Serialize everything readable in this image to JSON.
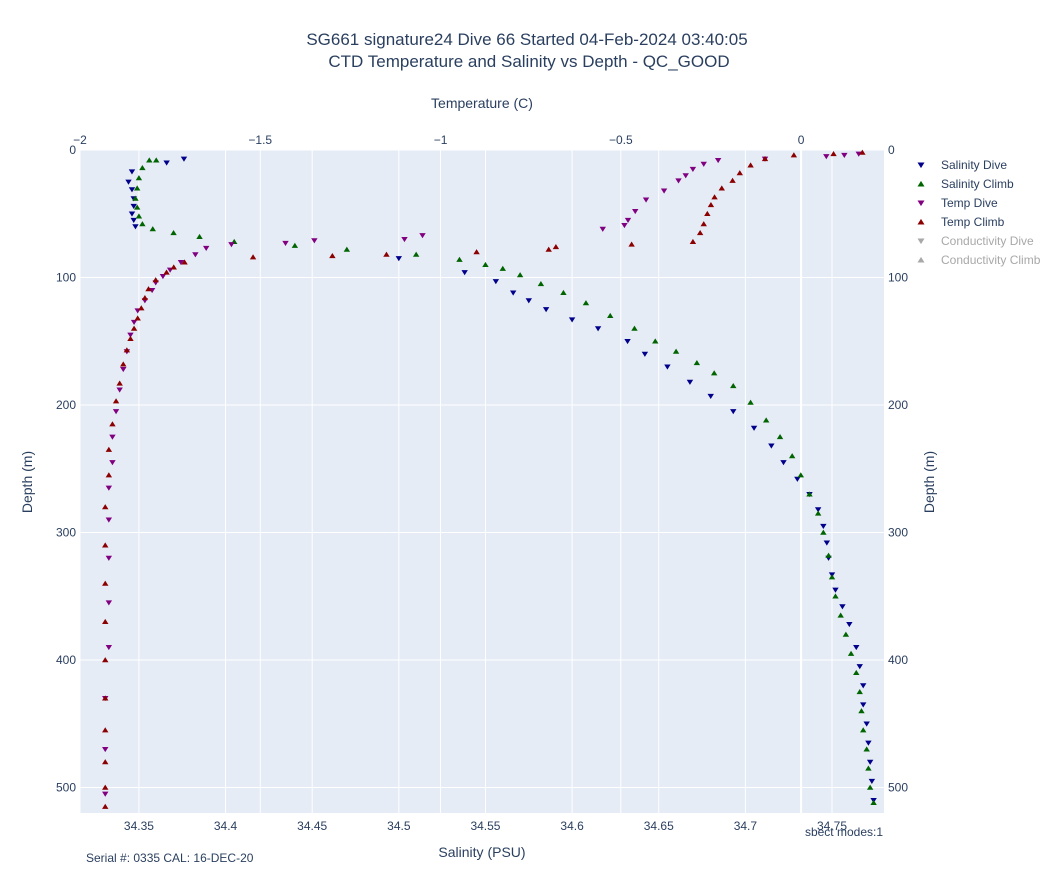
{
  "chart_data": {
    "type": "scatter",
    "title": "SG661 signature24 Dive 66 Started 04-Feb-2024 03:40:05",
    "subtitle": "CTD Temperature and Salinity vs Depth - QC_GOOD",
    "xlabel": "Salinity (PSU)",
    "x2label": "Temperature (C)",
    "ylabel": "Depth (m)",
    "y2label": "Depth (m)",
    "xlim": [
      34.316,
      34.78
    ],
    "x2lim": [
      -2.0,
      0.23
    ],
    "ylim": [
      520,
      0
    ],
    "xticks": [
      "34.35",
      "34.4",
      "34.45",
      "34.5",
      "34.55",
      "34.6",
      "34.65",
      "34.7",
      "34.75"
    ],
    "x2ticks": [
      "−2",
      "−1.5",
      "−1",
      "−0.5",
      "0"
    ],
    "yticks": [
      "0",
      "100",
      "200",
      "300",
      "400",
      "500"
    ],
    "grid": true,
    "legend_placement": "right",
    "series": [
      {
        "name": "Salinity Dive",
        "axis": "salinity",
        "marker": "triangle-down",
        "color": "#00008b",
        "points": [
          [
            34.376,
            7
          ],
          [
            34.366,
            10
          ],
          [
            34.346,
            17
          ],
          [
            34.344,
            25
          ],
          [
            34.346,
            31
          ],
          [
            34.347,
            38
          ],
          [
            34.347,
            44
          ],
          [
            34.346,
            50
          ],
          [
            34.347,
            55
          ],
          [
            34.348,
            60
          ],
          [
            34.5,
            85
          ],
          [
            34.538,
            96
          ],
          [
            34.556,
            103
          ],
          [
            34.566,
            112
          ],
          [
            34.575,
            118
          ],
          [
            34.585,
            125
          ],
          [
            34.6,
            133
          ],
          [
            34.615,
            140
          ],
          [
            34.632,
            150
          ],
          [
            34.642,
            160
          ],
          [
            34.655,
            170
          ],
          [
            34.668,
            182
          ],
          [
            34.68,
            193
          ],
          [
            34.693,
            205
          ],
          [
            34.705,
            218
          ],
          [
            34.715,
            232
          ],
          [
            34.722,
            245
          ],
          [
            34.73,
            258
          ],
          [
            34.737,
            270
          ],
          [
            34.742,
            282
          ],
          [
            34.745,
            295
          ],
          [
            34.747,
            308
          ],
          [
            34.748,
            320
          ],
          [
            34.75,
            333
          ],
          [
            34.752,
            345
          ],
          [
            34.756,
            358
          ],
          [
            34.76,
            372
          ],
          [
            34.764,
            390
          ],
          [
            34.766,
            405
          ],
          [
            34.768,
            420
          ],
          [
            34.768,
            435
          ],
          [
            34.77,
            450
          ],
          [
            34.771,
            465
          ],
          [
            34.772,
            480
          ],
          [
            34.773,
            495
          ],
          [
            34.774,
            510
          ]
        ]
      },
      {
        "name": "Salinity Climb",
        "axis": "salinity",
        "marker": "triangle-up",
        "color": "#006400",
        "points": [
          [
            34.774,
            512
          ],
          [
            34.772,
            500
          ],
          [
            34.771,
            485
          ],
          [
            34.77,
            470
          ],
          [
            34.768,
            455
          ],
          [
            34.767,
            440
          ],
          [
            34.766,
            425
          ],
          [
            34.764,
            410
          ],
          [
            34.761,
            395
          ],
          [
            34.758,
            380
          ],
          [
            34.755,
            365
          ],
          [
            34.752,
            350
          ],
          [
            34.75,
            335
          ],
          [
            34.748,
            318
          ],
          [
            34.745,
            300
          ],
          [
            34.742,
            285
          ],
          [
            34.737,
            270
          ],
          [
            34.732,
            255
          ],
          [
            34.727,
            240
          ],
          [
            34.72,
            225
          ],
          [
            34.712,
            212
          ],
          [
            34.703,
            198
          ],
          [
            34.693,
            185
          ],
          [
            34.682,
            175
          ],
          [
            34.672,
            167
          ],
          [
            34.66,
            158
          ],
          [
            34.648,
            150
          ],
          [
            34.636,
            140
          ],
          [
            34.622,
            130
          ],
          [
            34.608,
            120
          ],
          [
            34.595,
            112
          ],
          [
            34.582,
            105
          ],
          [
            34.57,
            98
          ],
          [
            34.56,
            93
          ],
          [
            34.55,
            90
          ],
          [
            34.535,
            86
          ],
          [
            34.51,
            82
          ],
          [
            34.47,
            78
          ],
          [
            34.44,
            75
          ],
          [
            34.405,
            72
          ],
          [
            34.385,
            68
          ],
          [
            34.37,
            65
          ],
          [
            34.358,
            62
          ],
          [
            34.352,
            58
          ],
          [
            34.35,
            52
          ],
          [
            34.349,
            45
          ],
          [
            34.348,
            38
          ],
          [
            34.349,
            30
          ],
          [
            34.35,
            22
          ],
          [
            34.352,
            14
          ],
          [
            34.356,
            8
          ],
          [
            34.36,
            8
          ]
        ]
      },
      {
        "name": "Temp Dive",
        "axis": "temperature",
        "marker": "triangle-down",
        "color": "#800080",
        "points": [
          [
            0.16,
            3
          ],
          [
            0.12,
            4
          ],
          [
            0.07,
            5
          ],
          [
            -0.1,
            7
          ],
          [
            -0.23,
            8
          ],
          [
            -0.27,
            11
          ],
          [
            -0.3,
            15
          ],
          [
            -0.32,
            20
          ],
          [
            -0.34,
            24
          ],
          [
            -0.38,
            32
          ],
          [
            -0.43,
            39
          ],
          [
            -0.46,
            48
          ],
          [
            -0.48,
            55
          ],
          [
            -0.49,
            59
          ],
          [
            -0.55,
            62
          ],
          [
            -1.05,
            67
          ],
          [
            -1.1,
            70
          ],
          [
            -1.35,
            71
          ],
          [
            -1.43,
            73
          ],
          [
            -1.58,
            74
          ],
          [
            -1.65,
            77
          ],
          [
            -1.68,
            82
          ],
          [
            -1.72,
            88
          ],
          [
            -1.75,
            94
          ],
          [
            -1.77,
            99
          ],
          [
            -1.79,
            104
          ],
          [
            -1.8,
            110
          ],
          [
            -1.82,
            118
          ],
          [
            -1.84,
            126
          ],
          [
            -1.85,
            135
          ],
          [
            -1.86,
            145
          ],
          [
            -1.87,
            158
          ],
          [
            -1.88,
            172
          ],
          [
            -1.89,
            188
          ],
          [
            -1.9,
            205
          ],
          [
            -1.91,
            225
          ],
          [
            -1.91,
            245
          ],
          [
            -1.92,
            265
          ],
          [
            -1.92,
            290
          ],
          [
            -1.92,
            320
          ],
          [
            -1.92,
            355
          ],
          [
            -1.92,
            390
          ],
          [
            -1.93,
            430
          ],
          [
            -1.93,
            470
          ],
          [
            -1.93,
            505
          ]
        ]
      },
      {
        "name": "Temp Climb",
        "axis": "temperature",
        "marker": "triangle-up",
        "color": "#8b0000",
        "points": [
          [
            -1.93,
            515
          ],
          [
            -1.93,
            500
          ],
          [
            -1.93,
            480
          ],
          [
            -1.93,
            455
          ],
          [
            -1.93,
            430
          ],
          [
            -1.93,
            400
          ],
          [
            -1.93,
            370
          ],
          [
            -1.93,
            340
          ],
          [
            -1.93,
            310
          ],
          [
            -1.93,
            280
          ],
          [
            -1.92,
            255
          ],
          [
            -1.92,
            235
          ],
          [
            -1.91,
            215
          ],
          [
            -1.9,
            197
          ],
          [
            -1.89,
            183
          ],
          [
            -1.88,
            168
          ],
          [
            -1.87,
            157
          ],
          [
            -1.86,
            148
          ],
          [
            -1.85,
            140
          ],
          [
            -1.84,
            132
          ],
          [
            -1.83,
            124
          ],
          [
            -1.82,
            116
          ],
          [
            -1.81,
            109
          ],
          [
            -1.79,
            102
          ],
          [
            -1.76,
            96
          ],
          [
            -1.74,
            92
          ],
          [
            -1.71,
            88
          ],
          [
            -1.52,
            84
          ],
          [
            -1.3,
            83
          ],
          [
            -1.15,
            82
          ],
          [
            -0.9,
            80
          ],
          [
            -0.7,
            78
          ],
          [
            -0.68,
            76
          ],
          [
            -0.47,
            74
          ],
          [
            -0.3,
            72
          ],
          [
            -0.28,
            65
          ],
          [
            -0.27,
            58
          ],
          [
            -0.26,
            50
          ],
          [
            -0.25,
            43
          ],
          [
            -0.24,
            37
          ],
          [
            -0.22,
            30
          ],
          [
            -0.19,
            24
          ],
          [
            -0.17,
            18
          ],
          [
            -0.14,
            12
          ],
          [
            -0.1,
            7
          ],
          [
            -0.02,
            4
          ],
          [
            0.09,
            3
          ],
          [
            0.17,
            2
          ]
        ]
      },
      {
        "name": "Conductivity Dive",
        "axis": "conductivity",
        "marker": "triangle-down",
        "color": "#a8a8a8",
        "visible": false,
        "points": []
      },
      {
        "name": "Conductivity Climb",
        "axis": "conductivity",
        "marker": "triangle-up",
        "color": "#a8a8a8",
        "visible": false,
        "points": []
      }
    ]
  },
  "annotations": {
    "serial": "Serial #: 0335  CAL: 16-DEC-20",
    "modes": "sbect modes:1"
  }
}
